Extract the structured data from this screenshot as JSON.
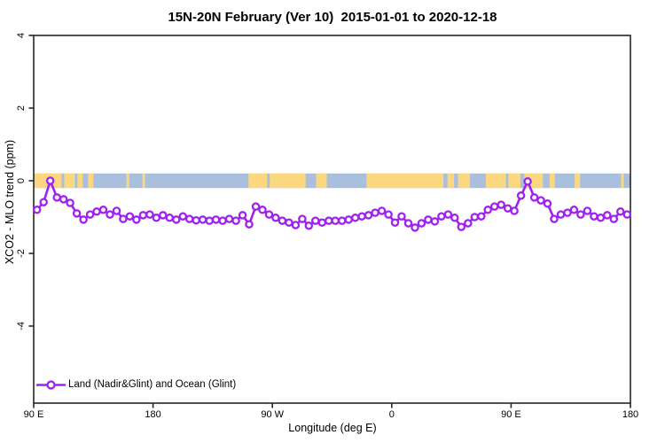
{
  "page": {
    "background": "#ffffff"
  },
  "chart_data": {
    "type": "line",
    "title": "15N-20N February (Ver 10)  2015-01-01 to 2020-12-18",
    "xlabel": "Longitude (deg E)",
    "ylabel": "XCO2 - MLO trend (ppm)",
    "legend": {
      "label": "Land (Nadir&Glint) and Ocean (Glint)",
      "position": "bottom-left",
      "marker": "open-circle-on-line"
    },
    "series_color": "#a020f0",
    "marker_fill": "#ffffff",
    "box_color": "#262626",
    "grid": false,
    "xlim": [
      90,
      540
    ],
    "ylim": [
      -6.1,
      4.0
    ],
    "x_ticks": [
      {
        "pos": 90,
        "label": "90 E"
      },
      {
        "pos": 180,
        "label": "180"
      },
      {
        "pos": 270,
        "label": "90 W"
      },
      {
        "pos": 360,
        "label": "0"
      },
      {
        "pos": 450,
        "label": "90 E"
      },
      {
        "pos": 540,
        "label": "180"
      }
    ],
    "y_ticks": [
      {
        "pos": -4,
        "label": "-4"
      },
      {
        "pos": -2,
        "label": "-2"
      },
      {
        "pos": 0,
        "label": "0"
      },
      {
        "pos": 2,
        "label": "2"
      },
      {
        "pos": 4,
        "label": "4"
      }
    ],
    "x_start": 92.5,
    "x_step": 5,
    "values": [
      -0.8,
      -0.59,
      0.0,
      -0.46,
      -0.51,
      -0.61,
      -0.9,
      -1.07,
      -0.93,
      -0.85,
      -0.8,
      -0.93,
      -0.83,
      -1.05,
      -0.98,
      -1.07,
      -0.95,
      -0.93,
      -1.02,
      -0.95,
      -1.02,
      -1.07,
      -0.98,
      -1.05,
      -1.09,
      -1.07,
      -1.1,
      -1.07,
      -1.1,
      -1.05,
      -1.1,
      -0.95,
      -1.2,
      -0.71,
      -0.8,
      -0.93,
      -1.02,
      -1.1,
      -1.15,
      -1.22,
      -1.05,
      -1.24,
      -1.1,
      -1.15,
      -1.1,
      -1.1,
      -1.1,
      -1.07,
      -1.02,
      -0.98,
      -0.95,
      -0.88,
      -0.83,
      -0.93,
      -1.15,
      -0.98,
      -1.17,
      -1.29,
      -1.17,
      -1.07,
      -1.12,
      -0.98,
      -0.93,
      -1.02,
      -1.27,
      -1.17,
      -1.0,
      -0.98,
      -0.8,
      -0.71,
      -0.66,
      -0.76,
      -0.83,
      -0.41,
      -0.02,
      -0.46,
      -0.54,
      -0.63,
      -1.05,
      -0.93,
      -0.88,
      -0.8,
      -0.93,
      -0.83,
      -0.98,
      -1.02,
      -0.95,
      -1.05,
      -0.85,
      -0.93
    ],
    "map_band": {
      "meaning": "land/ocean strip centered on y=0",
      "value_range": [
        -0.2,
        0.2
      ],
      "ocean_color": "#a9bfdd",
      "land_color": "#fbd87f",
      "land_segments_deg": [
        [
          90,
          111
        ],
        [
          113,
          121
        ],
        [
          123,
          127
        ],
        [
          131,
          135
        ],
        [
          160,
          162
        ],
        [
          172,
          174
        ],
        [
          252,
          266
        ],
        [
          268,
          295
        ],
        [
          303,
          311
        ],
        [
          341,
          399
        ],
        [
          402,
          407
        ],
        [
          410,
          419
        ],
        [
          431,
          446
        ],
        [
          448,
          457
        ],
        [
          460,
          474
        ],
        [
          479,
          483
        ],
        [
          498,
          502
        ],
        [
          533,
          535
        ]
      ]
    }
  }
}
